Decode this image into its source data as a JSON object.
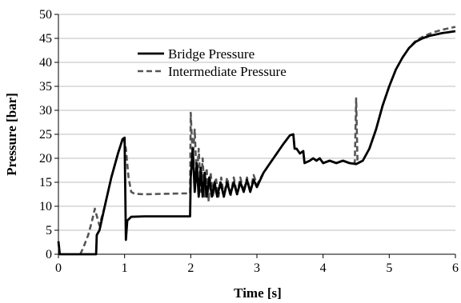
{
  "chart_data": {
    "type": "line",
    "title": "",
    "xlabel": "Time [s]",
    "ylabel": "Pressure [bar]",
    "xlim": [
      0,
      6
    ],
    "ylim": [
      0,
      50
    ],
    "xticks": [
      "0",
      "1",
      "2",
      "3",
      "4",
      "5",
      "6"
    ],
    "yticks": [
      "0",
      "5",
      "10",
      "15",
      "20",
      "25",
      "30",
      "35",
      "40",
      "45",
      "50"
    ],
    "grid": "horizontal",
    "legend_position": "top-left",
    "series": [
      {
        "name": "Bridge Pressure",
        "style": "solid",
        "color": "#000000",
        "points": [
          [
            0.0,
            2.7
          ],
          [
            0.02,
            0
          ],
          [
            0.57,
            0
          ],
          [
            0.58,
            4
          ],
          [
            0.62,
            5
          ],
          [
            0.7,
            10
          ],
          [
            0.8,
            16
          ],
          [
            0.9,
            21
          ],
          [
            0.97,
            24
          ],
          [
            1.0,
            24.3
          ],
          [
            1.02,
            3
          ],
          [
            1.04,
            7
          ],
          [
            1.1,
            7.8
          ],
          [
            1.3,
            7.9
          ],
          [
            1.6,
            7.9
          ],
          [
            1.99,
            7.9
          ],
          [
            2.0,
            16
          ],
          [
            2.03,
            22
          ],
          [
            2.06,
            13
          ],
          [
            2.09,
            19
          ],
          [
            2.12,
            12
          ],
          [
            2.15,
            18
          ],
          [
            2.18,
            12
          ],
          [
            2.21,
            17
          ],
          [
            2.24,
            12
          ],
          [
            2.28,
            16
          ],
          [
            2.32,
            12
          ],
          [
            2.36,
            15
          ],
          [
            2.4,
            12
          ],
          [
            2.45,
            15
          ],
          [
            2.5,
            12
          ],
          [
            2.55,
            15
          ],
          [
            2.6,
            12.5
          ],
          [
            2.65,
            15
          ],
          [
            2.7,
            12.5
          ],
          [
            2.75,
            15
          ],
          [
            2.8,
            13
          ],
          [
            2.85,
            15.5
          ],
          [
            2.9,
            13
          ],
          [
            2.95,
            15.5
          ],
          [
            3.0,
            14
          ],
          [
            3.1,
            17
          ],
          [
            3.2,
            19
          ],
          [
            3.3,
            21
          ],
          [
            3.4,
            23
          ],
          [
            3.5,
            24.8
          ],
          [
            3.55,
            25
          ],
          [
            3.57,
            22
          ],
          [
            3.6,
            22
          ],
          [
            3.65,
            21
          ],
          [
            3.7,
            21.5
          ],
          [
            3.72,
            19
          ],
          [
            3.8,
            19.5
          ],
          [
            3.85,
            20
          ],
          [
            3.9,
            19.5
          ],
          [
            3.95,
            20
          ],
          [
            4.0,
            19
          ],
          [
            4.1,
            19.5
          ],
          [
            4.2,
            19
          ],
          [
            4.3,
            19.5
          ],
          [
            4.4,
            19
          ],
          [
            4.5,
            18.8
          ],
          [
            4.6,
            19.5
          ],
          [
            4.7,
            22
          ],
          [
            4.8,
            26
          ],
          [
            4.9,
            31
          ],
          [
            5.0,
            35
          ],
          [
            5.1,
            38.5
          ],
          [
            5.2,
            41
          ],
          [
            5.3,
            43
          ],
          [
            5.4,
            44.3
          ],
          [
            5.5,
            45
          ],
          [
            5.6,
            45.5
          ],
          [
            5.7,
            45.8
          ],
          [
            5.8,
            46.1
          ],
          [
            5.9,
            46.3
          ],
          [
            6.0,
            46.5
          ]
        ]
      },
      {
        "name": "Intermediate Pressure",
        "style": "dashed",
        "color": "#555555",
        "points": [
          [
            0.33,
            0
          ],
          [
            0.38,
            1.5
          ],
          [
            0.45,
            4
          ],
          [
            0.5,
            6.5
          ],
          [
            0.55,
            9.5
          ],
          [
            0.58,
            8
          ],
          [
            0.62,
            6
          ],
          [
            0.7,
            10
          ],
          [
            0.8,
            16
          ],
          [
            0.9,
            21
          ],
          [
            0.98,
            24.5
          ],
          [
            1.02,
            22
          ],
          [
            1.06,
            16
          ],
          [
            1.1,
            13
          ],
          [
            1.15,
            12.6
          ],
          [
            1.3,
            12.5
          ],
          [
            1.6,
            12.6
          ],
          [
            1.99,
            12.7
          ],
          [
            2.0,
            29.5
          ],
          [
            2.03,
            20
          ],
          [
            2.06,
            26
          ],
          [
            2.09,
            15
          ],
          [
            2.12,
            22
          ],
          [
            2.15,
            13
          ],
          [
            2.18,
            20
          ],
          [
            2.21,
            12
          ],
          [
            2.24,
            18
          ],
          [
            2.27,
            11
          ],
          [
            2.3,
            17
          ],
          [
            2.34,
            12
          ],
          [
            2.38,
            16
          ],
          [
            2.42,
            12
          ],
          [
            2.46,
            16
          ],
          [
            2.5,
            12
          ],
          [
            2.55,
            16
          ],
          [
            2.6,
            12
          ],
          [
            2.65,
            16
          ],
          [
            2.7,
            12.5
          ],
          [
            2.75,
            16
          ],
          [
            2.8,
            13
          ],
          [
            2.85,
            16
          ],
          [
            2.9,
            13
          ],
          [
            2.95,
            16.5
          ],
          [
            3.0,
            14.5
          ],
          [
            3.1,
            17
          ],
          [
            3.2,
            19
          ],
          [
            3.3,
            21
          ],
          [
            3.4,
            23
          ],
          [
            3.5,
            24.8
          ],
          [
            3.55,
            25
          ],
          [
            3.57,
            22
          ],
          [
            3.6,
            22
          ],
          [
            3.65,
            21
          ],
          [
            3.7,
            21.5
          ],
          [
            3.72,
            19
          ],
          [
            3.8,
            19.5
          ],
          [
            3.85,
            20
          ],
          [
            3.9,
            19.5
          ],
          [
            3.95,
            20
          ],
          [
            4.0,
            19
          ],
          [
            4.1,
            19.5
          ],
          [
            4.2,
            19
          ],
          [
            4.3,
            19.5
          ],
          [
            4.4,
            19
          ],
          [
            4.48,
            19
          ],
          [
            4.5,
            32.5
          ],
          [
            4.52,
            19
          ],
          [
            4.6,
            19.5
          ],
          [
            4.7,
            22
          ],
          [
            4.8,
            26
          ],
          [
            4.9,
            31
          ],
          [
            5.0,
            35
          ],
          [
            5.1,
            38.5
          ],
          [
            5.2,
            41
          ],
          [
            5.3,
            43
          ],
          [
            5.4,
            44.5
          ],
          [
            5.5,
            45.3
          ],
          [
            5.6,
            45.9
          ],
          [
            5.7,
            46.4
          ],
          [
            5.8,
            46.8
          ],
          [
            5.9,
            47.1
          ],
          [
            6.0,
            47.4
          ]
        ]
      }
    ]
  }
}
